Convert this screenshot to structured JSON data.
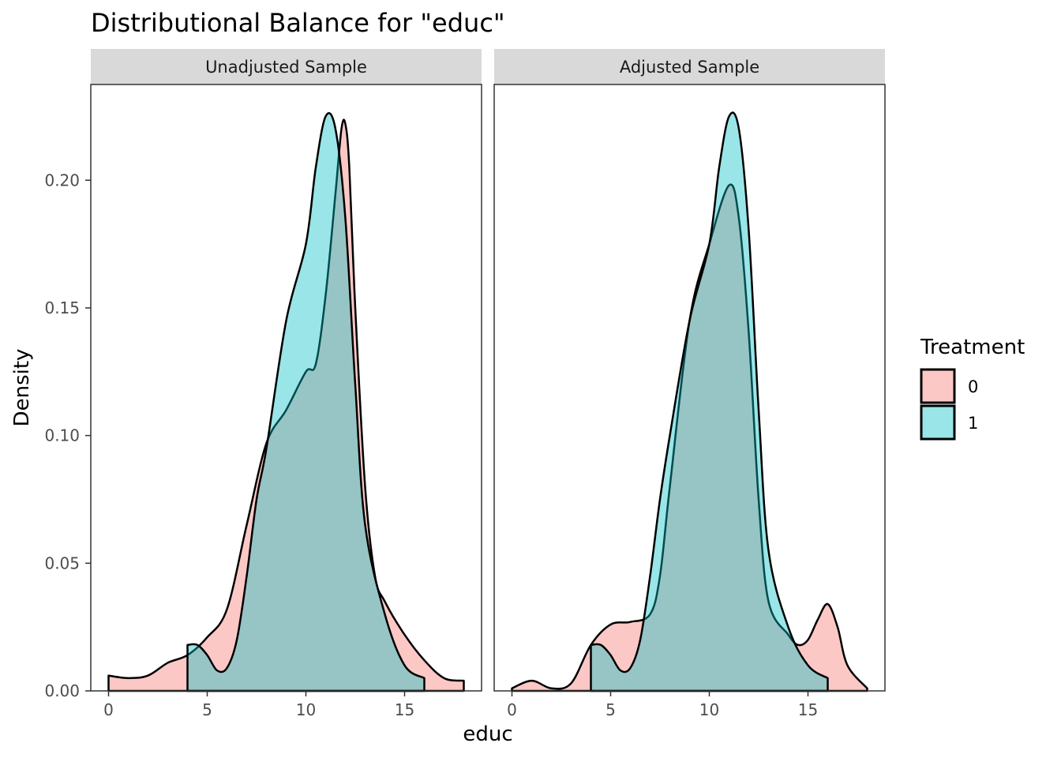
{
  "chart_data": {
    "type": "area",
    "title": "Distributional Balance for \"educ\"",
    "xlabel": "educ",
    "ylabel": "Density",
    "xlim": [
      -0.9,
      18.9
    ],
    "ylim": [
      0,
      0.2375
    ],
    "x_ticks": [
      0,
      5,
      10,
      15
    ],
    "y_ticks": [
      0.0,
      0.05,
      0.1,
      0.15,
      0.2
    ],
    "y_tick_labels": [
      "0.00",
      "0.05",
      "0.10",
      "0.15",
      "0.20"
    ],
    "legend": {
      "title": "Treatment",
      "position": "right",
      "items": [
        {
          "label": "0",
          "color": "#F8766D"
        },
        {
          "label": "1",
          "color": "#00BFC4"
        }
      ]
    },
    "panels": [
      {
        "strip": "Unadjusted Sample",
        "series": [
          {
            "name": "0",
            "color": "#F8766D",
            "points": [
              [
                0,
                0.006
              ],
              [
                1,
                0.005
              ],
              [
                2,
                0.006
              ],
              [
                3,
                0.011
              ],
              [
                4,
                0.014
              ],
              [
                5,
                0.021
              ],
              [
                6,
                0.032
              ],
              [
                7,
                0.065
              ],
              [
                8,
                0.097
              ],
              [
                9,
                0.11
              ],
              [
                10,
                0.125
              ],
              [
                10.5,
                0.128
              ],
              [
                11,
                0.155
              ],
              [
                11.5,
                0.195
              ],
              [
                11.8,
                0.22
              ],
              [
                12,
                0.222
              ],
              [
                12.2,
                0.205
              ],
              [
                12.5,
                0.15
              ],
              [
                13,
                0.08
              ],
              [
                13.5,
                0.045
              ],
              [
                14,
                0.035
              ],
              [
                15,
                0.022
              ],
              [
                16,
                0.012
              ],
              [
                17,
                0.005
              ],
              [
                18,
                0.004
              ]
            ]
          },
          {
            "name": "1",
            "color": "#00BFC4",
            "points": [
              [
                4,
                0.018
              ],
              [
                4.5,
                0.018
              ],
              [
                5,
                0.014
              ],
              [
                5.5,
                0.008
              ],
              [
                6,
                0.009
              ],
              [
                6.5,
                0.02
              ],
              [
                7,
                0.045
              ],
              [
                7.5,
                0.075
              ],
              [
                8,
                0.095
              ],
              [
                9,
                0.145
              ],
              [
                10,
                0.175
              ],
              [
                10.5,
                0.205
              ],
              [
                11,
                0.225
              ],
              [
                11.5,
                0.22
              ],
              [
                12,
                0.185
              ],
              [
                12.5,
                0.12
              ],
              [
                13,
                0.065
              ],
              [
                14,
                0.03
              ],
              [
                15,
                0.01
              ],
              [
                16,
                0.005
              ]
            ]
          }
        ]
      },
      {
        "strip": "Adjusted Sample",
        "series": [
          {
            "name": "0",
            "color": "#F8766D",
            "points": [
              [
                0,
                0.001
              ],
              [
                1,
                0.004
              ],
              [
                2,
                0.001
              ],
              [
                3,
                0.003
              ],
              [
                4,
                0.018
              ],
              [
                5,
                0.026
              ],
              [
                6,
                0.027
              ],
              [
                7,
                0.03
              ],
              [
                7.5,
                0.045
              ],
              [
                8,
                0.08
              ],
              [
                9,
                0.145
              ],
              [
                10,
                0.175
              ],
              [
                11,
                0.198
              ],
              [
                11.5,
                0.185
              ],
              [
                12,
                0.14
              ],
              [
                12.5,
                0.075
              ],
              [
                13,
                0.035
              ],
              [
                14,
                0.022
              ],
              [
                14.5,
                0.018
              ],
              [
                15,
                0.02
              ],
              [
                15.5,
                0.028
              ],
              [
                16,
                0.034
              ],
              [
                16.5,
                0.025
              ],
              [
                17,
                0.01
              ],
              [
                18,
                0.001
              ]
            ]
          },
          {
            "name": "1",
            "color": "#00BFC4",
            "points": [
              [
                4,
                0.018
              ],
              [
                4.5,
                0.018
              ],
              [
                5,
                0.014
              ],
              [
                5.5,
                0.008
              ],
              [
                6,
                0.009
              ],
              [
                6.5,
                0.02
              ],
              [
                7,
                0.045
              ],
              [
                7.5,
                0.075
              ],
              [
                8,
                0.1
              ],
              [
                9,
                0.145
              ],
              [
                10,
                0.175
              ],
              [
                10.5,
                0.205
              ],
              [
                11,
                0.225
              ],
              [
                11.5,
                0.22
              ],
              [
                12,
                0.18
              ],
              [
                12.5,
                0.11
              ],
              [
                13,
                0.055
              ],
              [
                14,
                0.025
              ],
              [
                15,
                0.01
              ],
              [
                16,
                0.005
              ]
            ]
          }
        ]
      }
    ]
  }
}
